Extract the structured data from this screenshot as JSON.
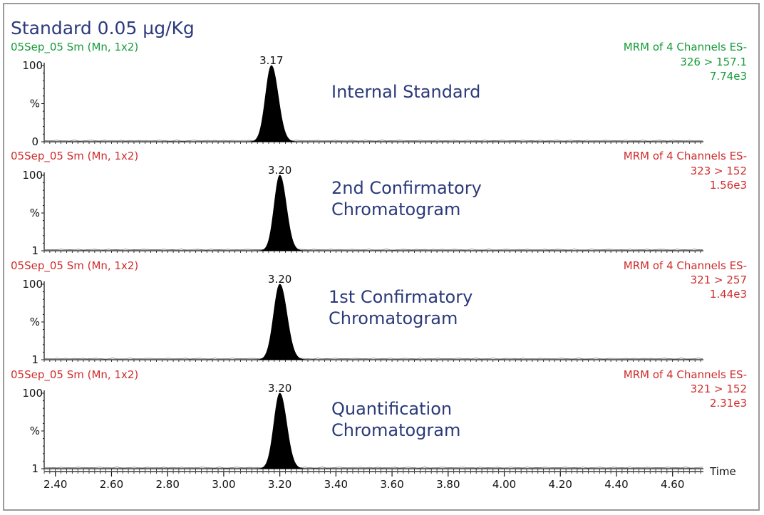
{
  "colors": {
    "title": "#2b3a7a",
    "green": "#149b38",
    "red": "#cf2c2c",
    "annotation": "#2b3a7a",
    "axis": "#111111",
    "peak": "#000000",
    "frame": "#9a9a9a"
  },
  "chart_data": {
    "type": "line",
    "title": "Standard 0.05 µg/Kg",
    "xlabel": "Time",
    "xlim": [
      2.36,
      4.71
    ],
    "x_ticks": [
      "2.40",
      "2.60",
      "2.80",
      "3.00",
      "3.20",
      "3.40",
      "3.60",
      "3.80",
      "4.00",
      "4.20",
      "4.40",
      "4.60"
    ],
    "x_tick_values": [
      2.4,
      2.6,
      2.8,
      3.0,
      3.2,
      3.4,
      3.6,
      3.8,
      4.0,
      4.2,
      4.4,
      4.6
    ],
    "panels": [
      {
        "file_label": "05Sep_05 Sm (Mn, 1x2)",
        "channel": "MRM of 4 Channels ES-",
        "transition": "326 > 157.1",
        "intensity": "7.74e3",
        "color_key": "green",
        "y_ticks": [
          "100",
          "%",
          "0"
        ],
        "ylim": [
          0,
          100
        ],
        "peak_rt": 3.17,
        "peak_label": "3.17",
        "peak_sigma": 0.021,
        "peak_height": 100,
        "annotation": [
          "Internal Standard"
        ]
      },
      {
        "file_label": "05Sep_05 Sm (Mn, 1x2)",
        "channel": "MRM of 4 Channels ES-",
        "transition": "323 > 152",
        "intensity": "1.56e3",
        "color_key": "red",
        "y_ticks": [
          "100",
          "%",
          "1"
        ],
        "ylim": [
          1,
          100
        ],
        "peak_rt": 3.2,
        "peak_label": "3.20",
        "peak_sigma": 0.02,
        "peak_height": 100,
        "annotation": [
          "2nd Confirmatory",
          "Chromatogram"
        ]
      },
      {
        "file_label": "05Sep_05 Sm (Mn, 1x2)",
        "channel": "MRM of 4 Channels ES-",
        "transition": "321 > 257",
        "intensity": "1.44e3",
        "color_key": "red",
        "y_ticks": [
          "100",
          "%",
          "1"
        ],
        "ylim": [
          1,
          100
        ],
        "peak_rt": 3.2,
        "peak_label": "3.20",
        "peak_sigma": 0.022,
        "peak_height": 100,
        "annotation": [
          "1st Confirmatory",
          "Chromatogram"
        ]
      },
      {
        "file_label": "05Sep_05 Sm (Mn, 1x2)",
        "channel": "MRM of 4 Channels ES-",
        "transition": "321 > 152",
        "intensity": "2.31e3",
        "color_key": "red",
        "y_ticks": [
          "100",
          "%",
          "1"
        ],
        "ylim": [
          1,
          100
        ],
        "peak_rt": 3.2,
        "peak_label": "3.20",
        "peak_sigma": 0.021,
        "peak_height": 100,
        "annotation": [
          "Quantification",
          "Chromatogram"
        ]
      }
    ]
  }
}
